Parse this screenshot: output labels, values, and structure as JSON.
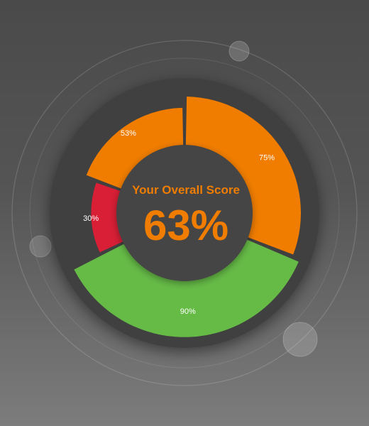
{
  "chart_data": {
    "type": "donut",
    "center_label": "Your Overall Score",
    "center_value": "63%",
    "segments": [
      {
        "label": "75%",
        "value": 75,
        "color": "#f07d00"
      },
      {
        "label": "90%",
        "value": 90,
        "color": "#66bb47"
      },
      {
        "label": "30%",
        "value": 30,
        "color": "#d81f36"
      },
      {
        "label": "53%",
        "value": 53,
        "color": "#f07d00"
      }
    ]
  },
  "colors": {
    "center_disc": "#444444",
    "center_text": "#f07d00"
  }
}
